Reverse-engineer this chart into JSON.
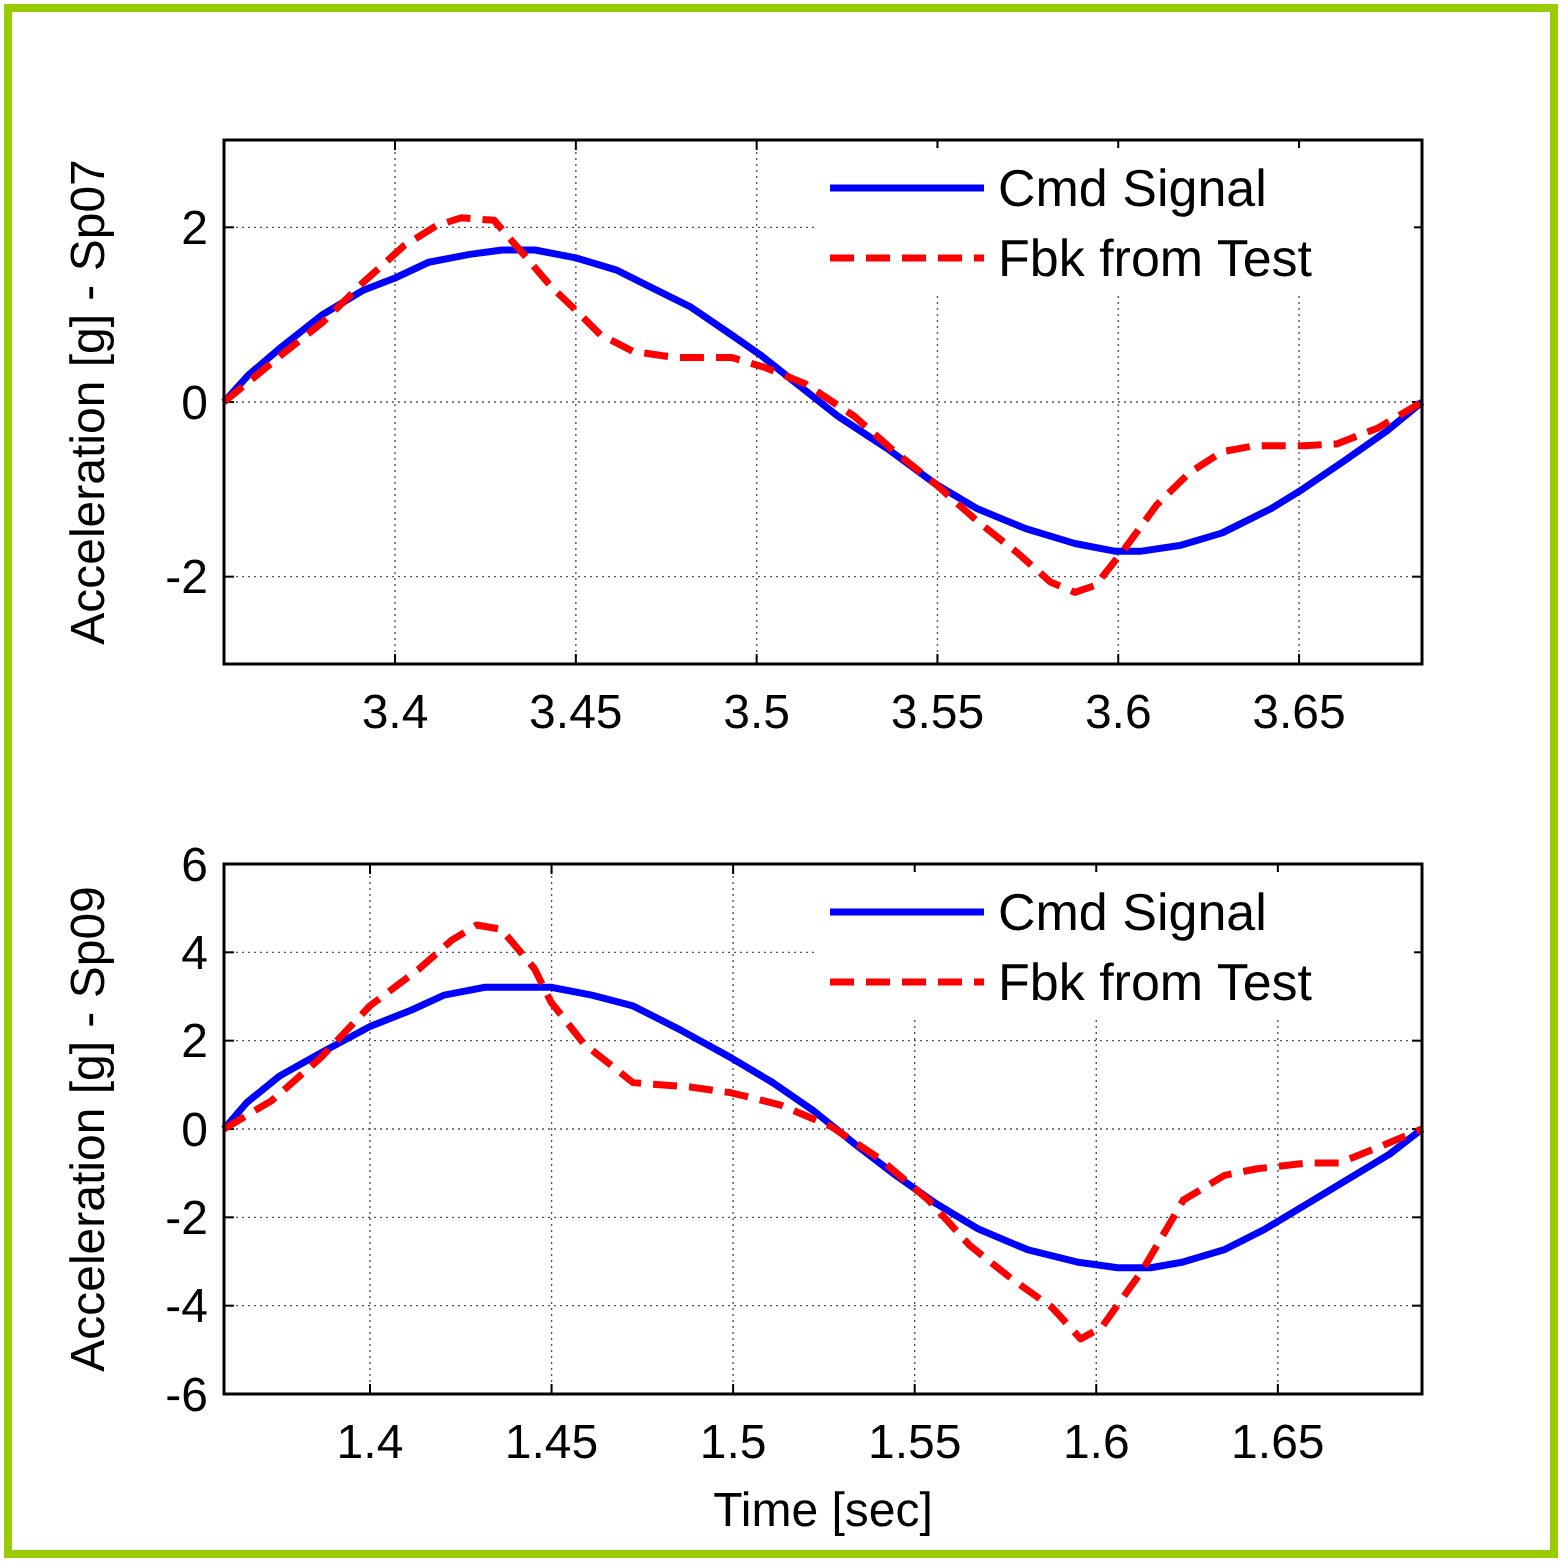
{
  "chart_data": [
    {
      "type": "line",
      "ylabel": "Acceleration [g] - Sp07",
      "xlim": [
        3.3527,
        3.684
      ],
      "xticks": [
        3.4,
        3.45,
        3.5,
        3.55,
        3.6,
        3.65
      ],
      "ylim": [
        -3,
        3
      ],
      "yticks": [
        -2,
        0,
        2
      ],
      "grid": true,
      "legend": "top right",
      "series": [
        {
          "name": "Cmd Signal",
          "color": "#0000ff",
          "line_style": "solid",
          "x": [
            3.3527,
            3.3595,
            3.3686,
            3.3799,
            3.3912,
            3.4,
            3.4093,
            3.4206,
            3.4296,
            3.4387,
            3.45,
            3.4613,
            3.4704,
            3.4817,
            3.493,
            3.501,
            3.5111,
            3.5224,
            3.536,
            3.5495,
            3.5609,
            3.5744,
            3.588,
            3.5993,
            3.606,
            3.6174,
            3.6287,
            3.6423,
            3.6513,
            3.6626,
            3.674,
            3.684
          ],
          "values": [
            0,
            0.31,
            0.63,
            1.0,
            1.28,
            1.42,
            1.6,
            1.69,
            1.74,
            1.74,
            1.65,
            1.51,
            1.32,
            1.09,
            0.77,
            0.54,
            0.21,
            -0.16,
            -0.53,
            -0.94,
            -1.22,
            -1.45,
            -1.62,
            -1.71,
            -1.71,
            -1.64,
            -1.5,
            -1.22,
            -0.99,
            -0.67,
            -0.34,
            0
          ]
        },
        {
          "name": "Fbk from Test",
          "color": "#ff0000",
          "line_style": "dashed",
          "x": [
            3.3527,
            3.3686,
            3.3799,
            3.3912,
            3.4025,
            3.4115,
            3.4183,
            3.4274,
            3.4364,
            3.4432,
            3.45,
            3.4568,
            3.4658,
            3.4772,
            3.493,
            3.502,
            3.5134,
            3.5269,
            3.5382,
            3.5495,
            3.5609,
            3.5722,
            3.5812,
            3.588,
            3.5937,
            3.6016,
            3.6106,
            3.6197,
            3.6287,
            3.6378,
            3.6513,
            3.6604,
            3.6717,
            3.684
          ],
          "values": [
            0,
            0.54,
            0.91,
            1.37,
            1.79,
            2.02,
            2.11,
            2.08,
            1.65,
            1.32,
            1.05,
            0.77,
            0.58,
            0.51,
            0.51,
            0.4,
            0.21,
            -0.16,
            -0.57,
            -0.94,
            -1.36,
            -1.73,
            -2.06,
            -2.18,
            -2.1,
            -1.69,
            -1.18,
            -0.81,
            -0.57,
            -0.5,
            -0.5,
            -0.48,
            -0.3,
            0
          ]
        }
      ]
    },
    {
      "type": "line",
      "xlabel": "Time [sec]",
      "ylabel": "Acceleration [g] - Sp09",
      "xlim": [
        1.3598,
        1.6897
      ],
      "xticks": [
        1.4,
        1.45,
        1.5,
        1.55,
        1.6,
        1.65
      ],
      "ylim": [
        -6,
        6
      ],
      "yticks": [
        -6,
        -4,
        -2,
        0,
        2,
        4,
        6
      ],
      "grid": true,
      "legend": "top right",
      "series": [
        {
          "name": "Cmd Signal",
          "color": "#0000ff",
          "line_style": "solid",
          "x": [
            1.3598,
            1.3661,
            1.3751,
            1.3864,
            1.4,
            1.4113,
            1.4204,
            1.4317,
            1.4498,
            1.4611,
            1.4724,
            1.486,
            1.4995,
            1.5109,
            1.5222,
            1.5335,
            1.5448,
            1.5561,
            1.5674,
            1.581,
            1.5946,
            1.6059,
            1.615,
            1.624,
            1.6353,
            1.6466,
            1.658,
            1.6693,
            1.6806,
            1.6897
          ],
          "values": [
            0,
            0.6,
            1.2,
            1.72,
            2.32,
            2.69,
            3.03,
            3.21,
            3.21,
            3.03,
            2.79,
            2.22,
            1.61,
            1.05,
            0.41,
            -0.34,
            -1.05,
            -1.7,
            -2.26,
            -2.73,
            -3.01,
            -3.14,
            -3.14,
            -3.01,
            -2.73,
            -2.26,
            -1.7,
            -1.14,
            -0.58,
            0
          ]
        },
        {
          "name": "Fbk from Test",
          "color": "#ff0000",
          "line_style": "dashed",
          "x": [
            1.3598,
            1.3729,
            1.3864,
            1.4,
            1.4136,
            1.4226,
            1.4294,
            1.4362,
            1.4453,
            1.4498,
            1.4588,
            1.4724,
            1.4882,
            1.4995,
            1.5131,
            1.5267,
            1.5403,
            1.5538,
            1.5652,
            1.5765,
            1.5878,
            1.5957,
            1.6014,
            1.6127,
            1.624,
            1.6353,
            1.6443,
            1.658,
            1.667,
            1.6783,
            1.6897
          ],
          "values": [
            0,
            0.64,
            1.61,
            2.79,
            3.63,
            4.28,
            4.62,
            4.52,
            3.63,
            2.88,
            1.94,
            1.05,
            0.95,
            0.82,
            0.54,
            0.07,
            -0.67,
            -1.61,
            -2.64,
            -3.38,
            -4.04,
            -4.75,
            -4.5,
            -3.2,
            -1.61,
            -1.05,
            -0.9,
            -0.77,
            -0.77,
            -0.39,
            0
          ]
        }
      ]
    }
  ]
}
